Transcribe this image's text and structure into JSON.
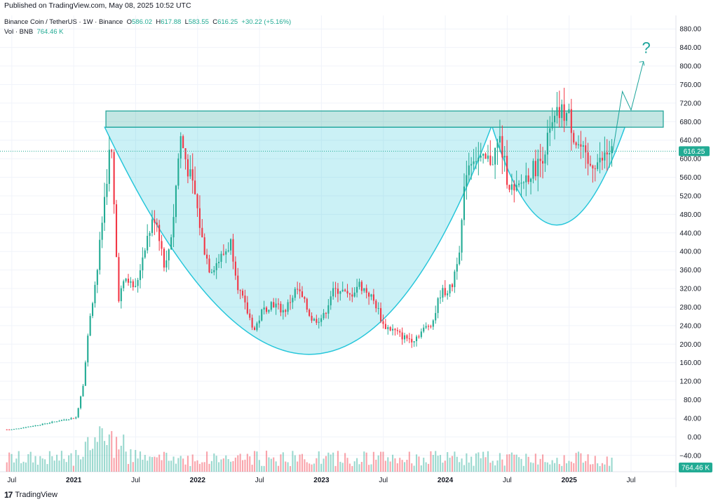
{
  "published": "Published on TradingView.com, May 08, 2025 10:52 UTC",
  "header": {
    "symbol": "Binance Coin / TetherUS · 1W · Binance",
    "o_label": "O",
    "o_value": "586.02",
    "h_label": "H",
    "h_value": "617.88",
    "l_label": "L",
    "l_value": "583.55",
    "c_label": "C",
    "c_value": "616.25",
    "change": "+30.22 (+5.16%)",
    "vol_label": "Vol · BNB",
    "vol_value": "764.46 K"
  },
  "footer": {
    "logo": "17",
    "brand": "TradingView"
  },
  "colors": {
    "up": "#22ab94",
    "down": "#f23645",
    "cup": "#26c6da",
    "zone": "#26a69a"
  },
  "annotation": {
    "question_mark": "?"
  },
  "chart_data": {
    "type": "candlestick",
    "y_axis_ticks": [
      "880.00",
      "840.00",
      "800.00",
      "760.00",
      "720.00",
      "680.00",
      "640.00",
      "600.00",
      "560.00",
      "520.00",
      "480.00",
      "440.00",
      "400.00",
      "360.00",
      "320.00",
      "280.00",
      "240.00",
      "200.00",
      "160.00",
      "120.00",
      "80.00",
      "40.00",
      "0.00",
      "−40.00"
    ],
    "ylim": [
      -60,
      900
    ],
    "x_axis_labels": [
      {
        "label": "Jul",
        "t": 2020.5,
        "bold": false
      },
      {
        "label": "2021",
        "t": 2021.0,
        "bold": true
      },
      {
        "label": "Jul",
        "t": 2021.5,
        "bold": false
      },
      {
        "label": "2022",
        "t": 2022.0,
        "bold": true
      },
      {
        "label": "Jul",
        "t": 2022.5,
        "bold": false
      },
      {
        "label": "2023",
        "t": 2023.0,
        "bold": true
      },
      {
        "label": "Jul",
        "t": 2023.5,
        "bold": false
      },
      {
        "label": "2024",
        "t": 2024.0,
        "bold": true
      },
      {
        "label": "Jul",
        "t": 2024.5,
        "bold": false
      },
      {
        "label": "2025",
        "t": 2025.0,
        "bold": true
      },
      {
        "label": "Jul",
        "t": 2025.5,
        "bold": false
      }
    ],
    "xlim": [
      2020.45,
      2025.8
    ],
    "last_price": "616.25",
    "last_price_value": 616.25,
    "volume_badge": "764.46 K",
    "resistance_zone": {
      "low": 668,
      "high": 703,
      "from": 2021.26,
      "to": 2025.76
    },
    "price_anchors": [
      [
        2020.5,
        16
      ],
      [
        2020.72,
        26
      ],
      [
        2020.92,
        37
      ],
      [
        2021.02,
        42
      ],
      [
        2021.08,
        120
      ],
      [
        2021.13,
        260
      ],
      [
        2021.19,
        360
      ],
      [
        2021.25,
        520
      ],
      [
        2021.3,
        640
      ],
      [
        2021.36,
        300
      ],
      [
        2021.42,
        340
      ],
      [
        2021.5,
        320
      ],
      [
        2021.58,
        420
      ],
      [
        2021.66,
        480
      ],
      [
        2021.74,
        360
      ],
      [
        2021.8,
        460
      ],
      [
        2021.86,
        650
      ],
      [
        2021.92,
        580
      ],
      [
        2021.98,
        520
      ],
      [
        2022.04,
        420
      ],
      [
        2022.1,
        360
      ],
      [
        2022.2,
        390
      ],
      [
        2022.27,
        420
      ],
      [
        2022.33,
        320
      ],
      [
        2022.4,
        270
      ],
      [
        2022.46,
        230
      ],
      [
        2022.52,
        270
      ],
      [
        2022.6,
        290
      ],
      [
        2022.7,
        270
      ],
      [
        2022.8,
        320
      ],
      [
        2022.86,
        290
      ],
      [
        2022.93,
        250
      ],
      [
        2023.02,
        260
      ],
      [
        2023.08,
        310
      ],
      [
        2023.15,
        320
      ],
      [
        2023.22,
        300
      ],
      [
        2023.3,
        330
      ],
      [
        2023.38,
        310
      ],
      [
        2023.45,
        280
      ],
      [
        2023.5,
        240
      ],
      [
        2023.58,
        230
      ],
      [
        2023.66,
        215
      ],
      [
        2023.74,
        210
      ],
      [
        2023.82,
        230
      ],
      [
        2023.9,
        250
      ],
      [
        2023.96,
        310
      ],
      [
        2024.05,
        320
      ],
      [
        2024.12,
        420
      ],
      [
        2024.17,
        580
      ],
      [
        2024.23,
        610
      ],
      [
        2024.3,
        590
      ],
      [
        2024.38,
        600
      ],
      [
        2024.44,
        640
      ],
      [
        2024.5,
        560
      ],
      [
        2024.56,
        520
      ],
      [
        2024.62,
        550
      ],
      [
        2024.68,
        570
      ],
      [
        2024.76,
        590
      ],
      [
        2024.84,
        650
      ],
      [
        2024.9,
        690
      ],
      [
        2024.95,
        700
      ],
      [
        2025.0,
        690
      ],
      [
        2025.05,
        640
      ],
      [
        2025.1,
        620
      ],
      [
        2025.15,
        580
      ],
      [
        2025.2,
        595
      ],
      [
        2025.25,
        590
      ],
      [
        2025.3,
        610
      ],
      [
        2025.35,
        616
      ]
    ],
    "cups": [
      {
        "left": [
          2021.25,
          668
        ],
        "right": [
          2024.37,
          668
        ],
        "bottom": [
          2022.9,
          178
        ]
      },
      {
        "left": [
          2024.38,
          668
        ],
        "right": [
          2025.45,
          668
        ],
        "bottom": [
          2024.9,
          457
        ]
      }
    ],
    "projection": [
      [
        2025.35,
        612
      ],
      [
        2025.43,
        745
      ],
      [
        2025.5,
        705
      ],
      [
        2025.6,
        810
      ]
    ]
  }
}
